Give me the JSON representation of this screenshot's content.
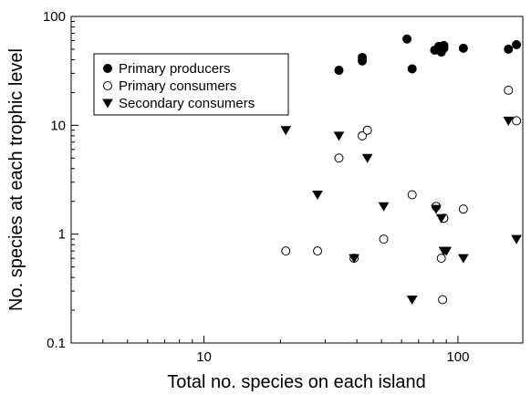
{
  "chart_data": {
    "type": "scatter",
    "title": "",
    "xlabel": "Total no. species on each island",
    "ylabel": "No. species at each trophic level",
    "xscale": "log",
    "yscale": "log",
    "xlim": [
      3,
      180
    ],
    "ylim": [
      0.1,
      100
    ],
    "x_ticks": [
      10,
      100
    ],
    "x_tick_labels": [
      "10",
      "100"
    ],
    "y_ticks": [
      0.1,
      1,
      10,
      100
    ],
    "y_tick_labels": [
      "0.1",
      "1",
      "10",
      "100"
    ],
    "grid": false,
    "legend_position": "top-left",
    "series": [
      {
        "name": "Primary producers",
        "marker": "filled-circle",
        "color": "#000000",
        "points": [
          {
            "x": 34,
            "y": 32
          },
          {
            "x": 42,
            "y": 39
          },
          {
            "x": 42,
            "y": 42
          },
          {
            "x": 63,
            "y": 62
          },
          {
            "x": 66,
            "y": 33
          },
          {
            "x": 81,
            "y": 49
          },
          {
            "x": 84,
            "y": 53
          },
          {
            "x": 86,
            "y": 47
          },
          {
            "x": 88,
            "y": 54
          },
          {
            "x": 88,
            "y": 51
          },
          {
            "x": 105,
            "y": 51
          },
          {
            "x": 158,
            "y": 50
          },
          {
            "x": 170,
            "y": 55
          }
        ]
      },
      {
        "name": "Primary consumers",
        "marker": "open-circle",
        "color": "#000000",
        "points": [
          {
            "x": 21,
            "y": 0.7
          },
          {
            "x": 28,
            "y": 0.7
          },
          {
            "x": 34,
            "y": 5
          },
          {
            "x": 39,
            "y": 0.6
          },
          {
            "x": 42,
            "y": 8
          },
          {
            "x": 44,
            "y": 9
          },
          {
            "x": 51,
            "y": 0.9
          },
          {
            "x": 66,
            "y": 2.3
          },
          {
            "x": 82,
            "y": 1.8
          },
          {
            "x": 86,
            "y": 0.6
          },
          {
            "x": 87,
            "y": 0.25
          },
          {
            "x": 88,
            "y": 1.4
          },
          {
            "x": 105,
            "y": 1.7
          },
          {
            "x": 158,
            "y": 21
          },
          {
            "x": 170,
            "y": 11
          }
        ]
      },
      {
        "name": "Secondary consumers",
        "marker": "filled-triangle-down",
        "color": "#000000",
        "points": [
          {
            "x": 21,
            "y": 9
          },
          {
            "x": 28,
            "y": 2.3
          },
          {
            "x": 34,
            "y": 8
          },
          {
            "x": 39,
            "y": 0.6
          },
          {
            "x": 44,
            "y": 5
          },
          {
            "x": 51,
            "y": 1.8
          },
          {
            "x": 66,
            "y": 0.25
          },
          {
            "x": 82,
            "y": 1.7
          },
          {
            "x": 86,
            "y": 1.4
          },
          {
            "x": 88,
            "y": 0.7
          },
          {
            "x": 90,
            "y": 0.7
          },
          {
            "x": 105,
            "y": 0.6
          },
          {
            "x": 158,
            "y": 11
          },
          {
            "x": 170,
            "y": 0.9
          }
        ]
      }
    ]
  }
}
